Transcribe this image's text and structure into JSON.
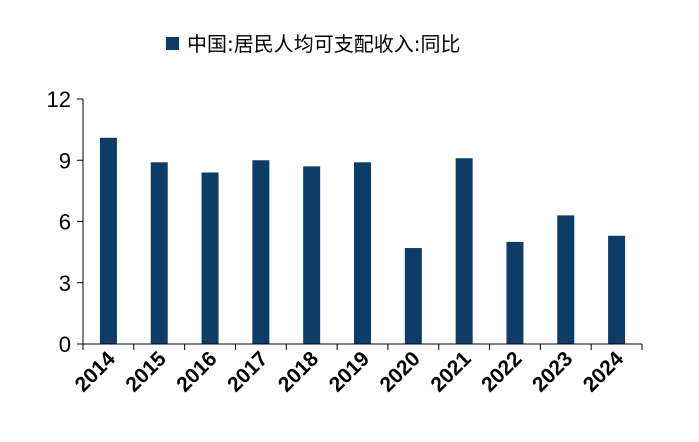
{
  "chart_data": {
    "type": "bar",
    "legend": "中国:居民人均可支配收入:同比",
    "legend_position": "top",
    "categories": [
      "2014",
      "2015",
      "2016",
      "2017",
      "2018",
      "2019",
      "2020",
      "2021",
      "2022",
      "2023",
      "2024"
    ],
    "series": [
      {
        "name": "中国:居民人均可支配收入:同比",
        "values": [
          10.1,
          8.9,
          8.4,
          9.0,
          8.7,
          8.9,
          4.7,
          9.1,
          5.0,
          6.3,
          5.3
        ]
      }
    ],
    "yticks": [
      0,
      3,
      6,
      9,
      12
    ],
    "ylim": [
      0,
      12
    ],
    "grid": false,
    "colors": {
      "bar": "#0d3c66",
      "axis": "#000000"
    }
  }
}
